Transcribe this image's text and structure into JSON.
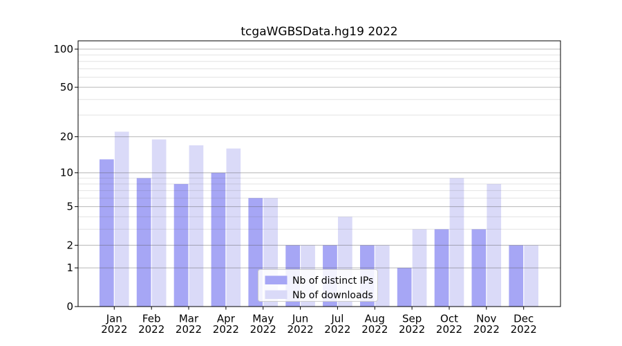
{
  "chart_data": {
    "type": "bar",
    "title": "tcgaWGBSData.hg19 2022",
    "categories": [
      "Jan",
      "Feb",
      "Mar",
      "Apr",
      "May",
      "Jun",
      "Jul",
      "Aug",
      "Sep",
      "Oct",
      "Nov",
      "Dec"
    ],
    "year_label": "2022",
    "series": [
      {
        "name": "Nb of distinct IPs",
        "color": "#a6a6f5",
        "values": [
          13,
          9,
          8,
          10,
          6,
          2,
          2,
          2,
          1,
          3,
          3,
          2
        ]
      },
      {
        "name": "Nb of downloads",
        "color": "#dadaf8",
        "values": [
          22,
          19,
          17,
          16,
          6,
          2,
          4,
          2,
          3,
          9,
          8,
          2
        ]
      }
    ],
    "yscale": "log1p",
    "yticks": [
      0,
      1,
      2,
      5,
      10,
      20,
      50,
      100
    ],
    "minor_yticks": [
      3,
      4,
      6,
      7,
      8,
      9,
      30,
      40,
      60,
      70,
      80,
      90
    ],
    "ylim": [
      0,
      117
    ],
    "grid": true,
    "legend_position": "lower center",
    "colors": {
      "axis": "#000000",
      "major_grid": "#555555",
      "minor_grid": "#555555",
      "legend_border": "#cccccc"
    }
  }
}
